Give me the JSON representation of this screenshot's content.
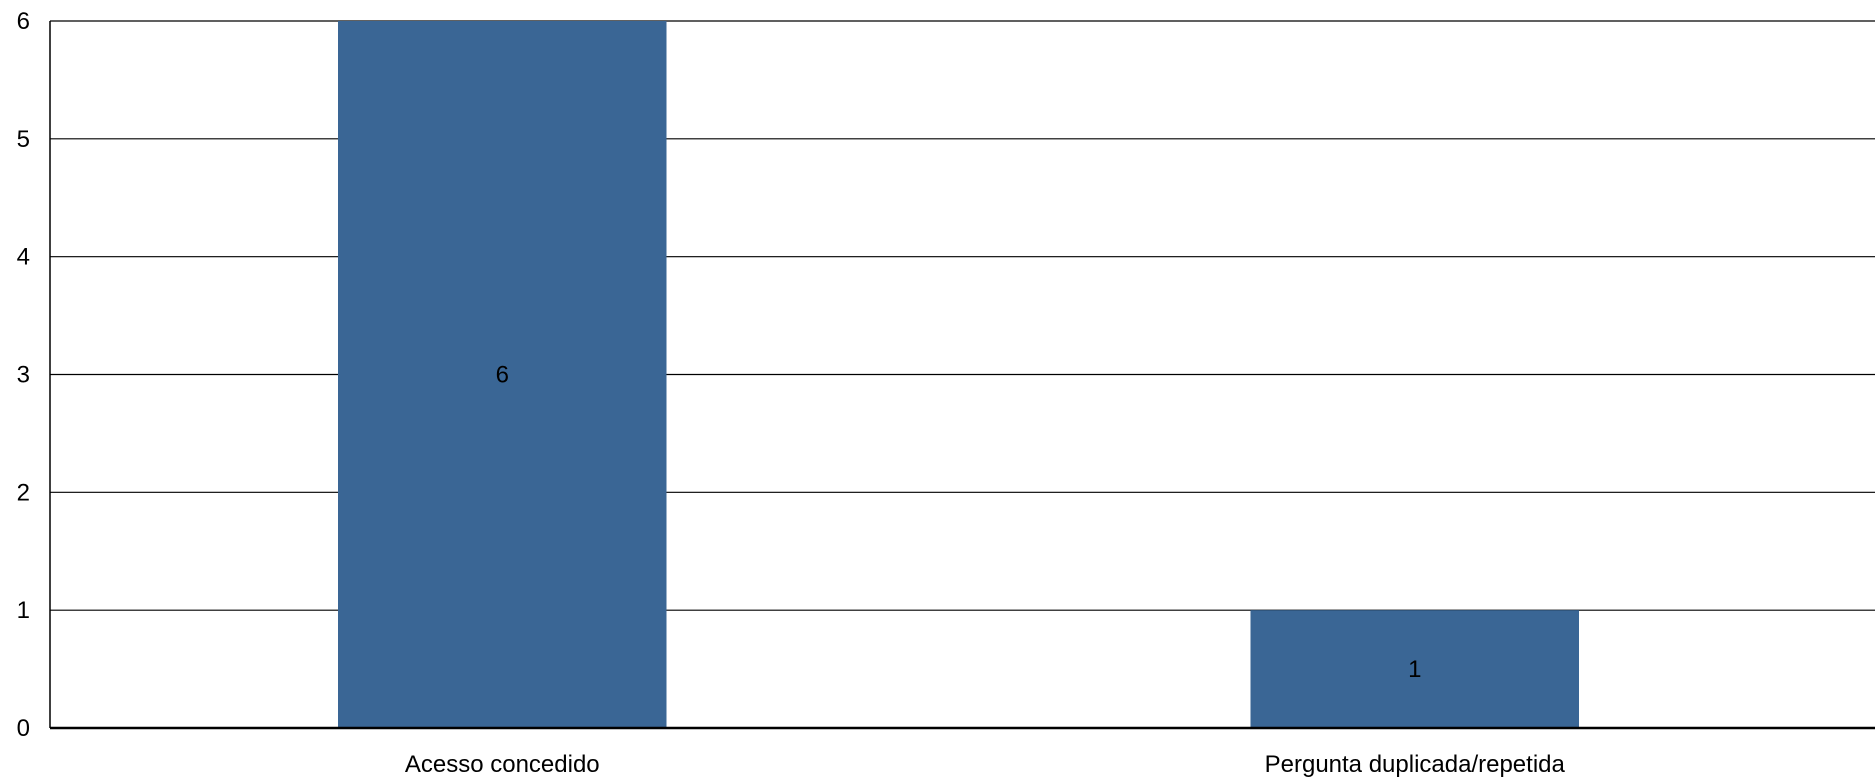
{
  "chart_data": {
    "type": "bar",
    "categories": [
      "Acesso concedido",
      "Pergunta duplicada/repetida"
    ],
    "values": [
      6,
      1
    ],
    "title": "",
    "xlabel": "",
    "ylabel": "",
    "ylim": [
      0,
      6
    ],
    "yticks": [
      "0",
      "1",
      "2",
      "3",
      "4",
      "5",
      "6"
    ],
    "data_labels": [
      "6",
      "1"
    ],
    "grid": true,
    "legend": "none",
    "colors": {
      "bar": "#3a6695",
      "grid": "#000000",
      "axis": "#000000",
      "background": "#ffffff"
    }
  }
}
